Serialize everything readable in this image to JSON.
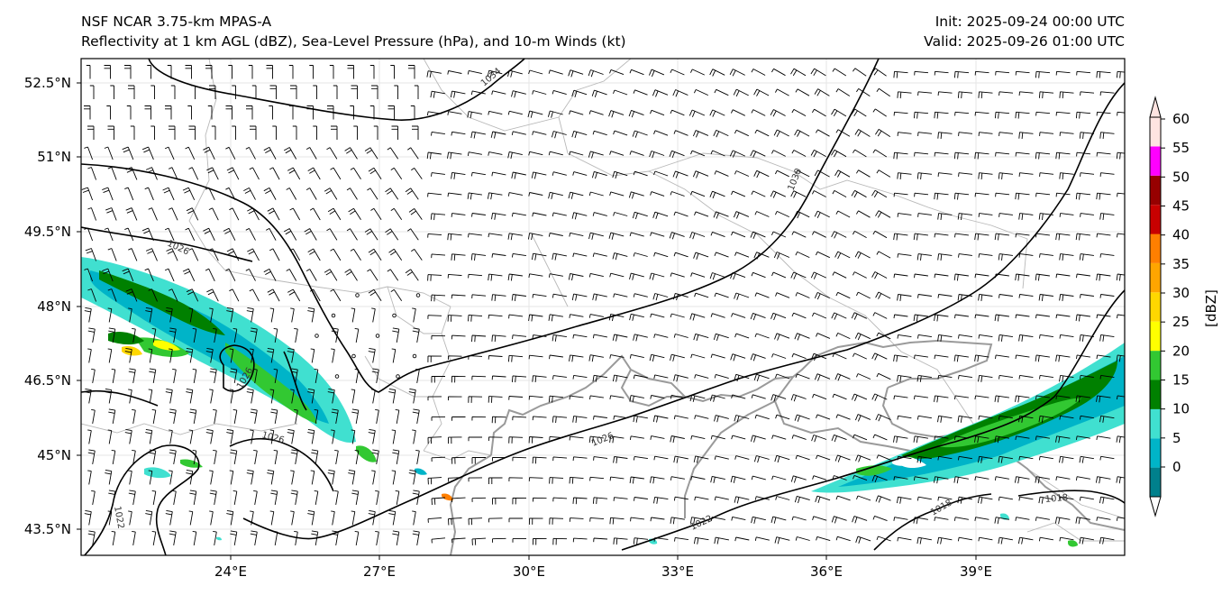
{
  "header": {
    "model": "NSF NCAR 3.75-km MPAS-A",
    "fields": "Reflectivity at 1 km AGL (dBZ), Sea-Level Pressure (hPa), and 10-m Winds (kt)",
    "init": "Init: 2025-09-24 00:00 UTC",
    "valid": "Valid: 2025-09-26 01:00 UTC"
  },
  "map": {
    "lon_range": [
      21,
      42
    ],
    "lat_range": [
      43,
      53
    ],
    "lat_ticks": [
      "52.5°N",
      "51°N",
      "49.5°N",
      "48°N",
      "46.5°N",
      "45°N",
      "43.5°N"
    ],
    "lon_ticks": [
      "24°E",
      "27°E",
      "30°E",
      "33°E",
      "36°E",
      "39°E"
    ],
    "gridlines": true,
    "isobar_labels": [
      "1034",
      "1030",
      "1026",
      "1026",
      "1026",
      "1026",
      "1022",
      "1022",
      "1018",
      "1018"
    ],
    "colors": {
      "isobar": "#000000",
      "coastline": "#9a9a9a",
      "border": "#b4b4b4",
      "barb": "#000000"
    }
  },
  "colorbar": {
    "label": "[dBZ]",
    "ticks": [
      "0",
      "5",
      "10",
      "15",
      "20",
      "25",
      "30",
      "35",
      "40",
      "45",
      "50",
      "55",
      "60"
    ],
    "colors": [
      "#ffffff",
      "#00808c",
      "#00b4c8",
      "#40e0d0",
      "#008000",
      "#32c832",
      "#ffff00",
      "#ffd700",
      "#ffa500",
      "#ff7f00",
      "#c80000",
      "#960000",
      "#ff00ff",
      "#ffe4e1"
    ]
  }
}
